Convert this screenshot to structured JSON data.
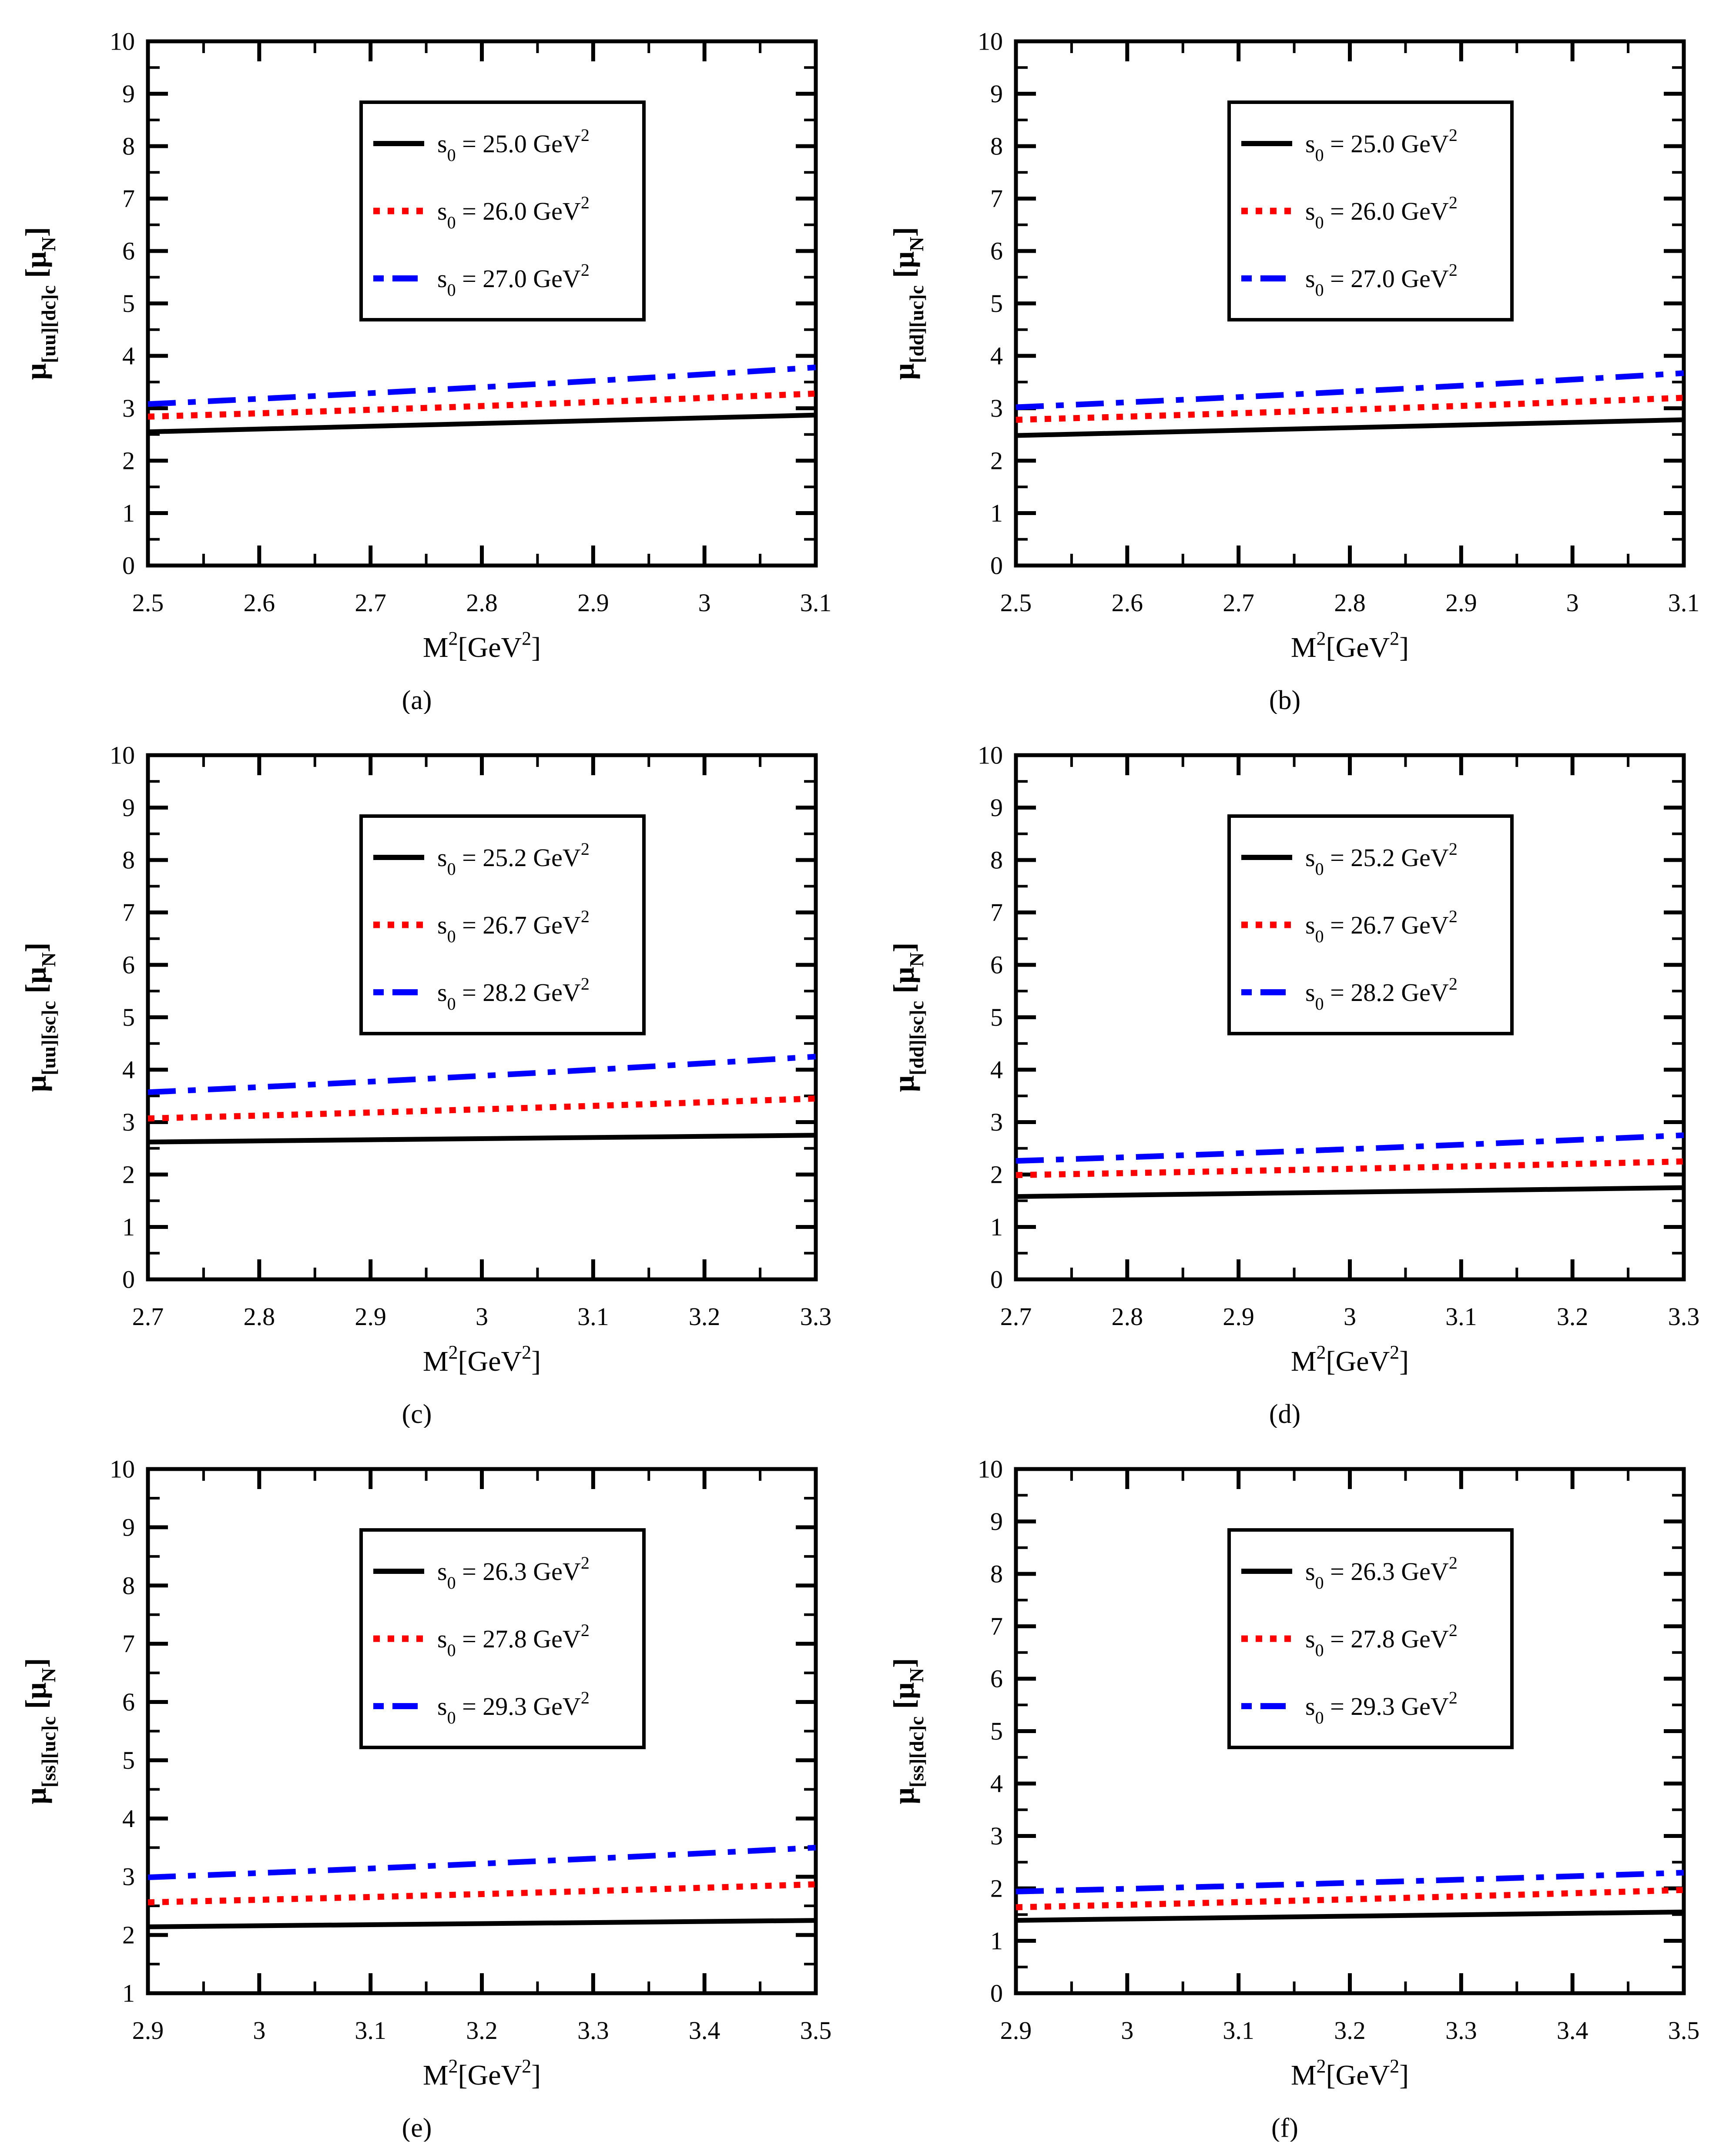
{
  "figure": {
    "background": "#ffffff",
    "xlabel": {
      "base": "M",
      "base_sup": "2",
      "unit_open": "[GeV",
      "unit_sup": "2",
      "unit_close": "]"
    },
    "ylabel_unit": {
      "open": "[",
      "symbol": "μ",
      "sub": "N",
      "close": "]"
    },
    "legend_prefix": {
      "base": "s",
      "sub": "0",
      "equals": " = ",
      "unit": " GeV",
      "unit_sup": "2"
    },
    "colors": {
      "series1": "#000000",
      "series2": "#ff0000",
      "series3": "#0000ff",
      "axis": "#000000"
    }
  },
  "chart_data": [
    {
      "type": "line",
      "caption": "(a)",
      "title": "",
      "xlabel": "M^2 [GeV^2]",
      "ylabel": "mu_[uu][dc]c [mu_N]",
      "ylabel_symbol": "μ",
      "ylabel_sub": "[uu][dc]c",
      "xlim": [
        2.5,
        3.1
      ],
      "ylim": [
        0,
        10
      ],
      "x_major": 0.1,
      "x_minor": 0.05,
      "y_major": 1,
      "y_minor": 0.5,
      "grid": false,
      "legend_position": "upper-center",
      "series": [
        {
          "name": "s0 = 25.0 GeV2",
          "s0": "25.0",
          "color": "#000000",
          "style": "solid",
          "x": [
            2.5,
            3.1
          ],
          "y": [
            2.55,
            2.87
          ]
        },
        {
          "name": "s0 = 26.0 GeV2",
          "s0": "26.0",
          "color": "#ff0000",
          "style": "dotted",
          "x": [
            2.5,
            3.1
          ],
          "y": [
            2.84,
            3.28
          ]
        },
        {
          "name": "s0 = 27.0 GeV2",
          "s0": "27.0",
          "color": "#0000ff",
          "style": "dashdot",
          "x": [
            2.5,
            3.1
          ],
          "y": [
            3.08,
            3.78
          ]
        }
      ]
    },
    {
      "type": "line",
      "caption": "(b)",
      "title": "",
      "xlabel": "M^2 [GeV^2]",
      "ylabel": "mu_[dd][uc]c [mu_N]",
      "ylabel_symbol": "μ",
      "ylabel_sub": "[dd][uc]c",
      "xlim": [
        2.5,
        3.1
      ],
      "ylim": [
        0,
        10
      ],
      "x_major": 0.1,
      "x_minor": 0.05,
      "y_major": 1,
      "y_minor": 0.5,
      "grid": false,
      "legend_position": "upper-center",
      "series": [
        {
          "name": "s0 = 25.0 GeV2",
          "s0": "25.0",
          "color": "#000000",
          "style": "solid",
          "x": [
            2.5,
            3.1
          ],
          "y": [
            2.48,
            2.78
          ]
        },
        {
          "name": "s0 = 26.0 GeV2",
          "s0": "26.0",
          "color": "#ff0000",
          "style": "dotted",
          "x": [
            2.5,
            3.1
          ],
          "y": [
            2.78,
            3.2
          ]
        },
        {
          "name": "s0 = 27.0 GeV2",
          "s0": "27.0",
          "color": "#0000ff",
          "style": "dashdot",
          "x": [
            2.5,
            3.1
          ],
          "y": [
            3.02,
            3.67
          ]
        }
      ]
    },
    {
      "type": "line",
      "caption": "(c)",
      "title": "",
      "xlabel": "M^2 [GeV^2]",
      "ylabel": "mu_[uu][sc]c [mu_N]",
      "ylabel_symbol": "μ",
      "ylabel_sub": "[uu][sc]c",
      "xlim": [
        2.7,
        3.3
      ],
      "ylim": [
        0,
        10
      ],
      "x_major": 0.1,
      "x_minor": 0.05,
      "y_major": 1,
      "y_minor": 0.5,
      "grid": false,
      "legend_position": "upper-center",
      "series": [
        {
          "name": "s0 = 25.2 GeV2",
          "s0": "25.2",
          "color": "#000000",
          "style": "solid",
          "x": [
            2.7,
            3.3
          ],
          "y": [
            2.62,
            2.75
          ]
        },
        {
          "name": "s0 = 26.7 GeV2",
          "s0": "26.7",
          "color": "#ff0000",
          "style": "dotted",
          "x": [
            2.7,
            3.3
          ],
          "y": [
            3.07,
            3.45
          ]
        },
        {
          "name": "s0 = 28.2 GeV2",
          "s0": "28.2",
          "color": "#0000ff",
          "style": "dashdot",
          "x": [
            2.7,
            3.3
          ],
          "y": [
            3.57,
            4.25
          ]
        }
      ]
    },
    {
      "type": "line",
      "caption": "(d)",
      "title": "",
      "xlabel": "M^2 [GeV^2]",
      "ylabel": "mu_[dd][sc]c [mu_N]",
      "ylabel_symbol": "μ",
      "ylabel_sub": "[dd][sc]c",
      "xlim": [
        2.7,
        3.3
      ],
      "ylim": [
        0,
        10
      ],
      "x_major": 0.1,
      "x_minor": 0.05,
      "y_major": 1,
      "y_minor": 0.5,
      "grid": false,
      "legend_position": "upper-center",
      "series": [
        {
          "name": "s0 = 25.2 GeV2",
          "s0": "25.2",
          "color": "#000000",
          "style": "solid",
          "x": [
            2.7,
            3.3
          ],
          "y": [
            1.58,
            1.75
          ]
        },
        {
          "name": "s0 = 26.7 GeV2",
          "s0": "26.7",
          "color": "#ff0000",
          "style": "dotted",
          "x": [
            2.7,
            3.3
          ],
          "y": [
            1.99,
            2.25
          ]
        },
        {
          "name": "s0 = 28.2 GeV2",
          "s0": "28.2",
          "color": "#0000ff",
          "style": "dashdot",
          "x": [
            2.7,
            3.3
          ],
          "y": [
            2.26,
            2.75
          ]
        }
      ]
    },
    {
      "type": "line",
      "caption": "(e)",
      "title": "",
      "xlabel": "M^2 [GeV^2]",
      "ylabel": "mu_[ss][uc]c [mu_N]",
      "ylabel_symbol": "μ",
      "ylabel_sub": "[ss][uc]c",
      "xlim": [
        2.9,
        3.5
      ],
      "ylim": [
        1,
        10
      ],
      "x_major": 0.1,
      "x_minor": 0.05,
      "y_major": 1,
      "y_minor": 0.5,
      "grid": false,
      "legend_position": "upper-center",
      "series": [
        {
          "name": "s0 = 26.3 GeV2",
          "s0": "26.3",
          "color": "#000000",
          "style": "solid",
          "x": [
            2.9,
            3.5
          ],
          "y": [
            2.14,
            2.25
          ]
        },
        {
          "name": "s0 = 27.8 GeV2",
          "s0": "27.8",
          "color": "#ff0000",
          "style": "dotted",
          "x": [
            2.9,
            3.5
          ],
          "y": [
            2.56,
            2.87
          ]
        },
        {
          "name": "s0 = 29.3 GeV2",
          "s0": "29.3",
          "color": "#0000ff",
          "style": "dashdot",
          "x": [
            2.9,
            3.5
          ],
          "y": [
            2.99,
            3.5
          ]
        }
      ]
    },
    {
      "type": "line",
      "caption": "(f)",
      "title": "",
      "xlabel": "M^2 [GeV^2]",
      "ylabel": "mu_[ss][dc]c [mu_N]",
      "ylabel_symbol": "μ",
      "ylabel_sub": "[ss][dc]c",
      "xlim": [
        2.9,
        3.5
      ],
      "ylim": [
        0,
        10
      ],
      "x_major": 0.1,
      "x_minor": 0.05,
      "y_major": 1,
      "y_minor": 0.5,
      "grid": false,
      "legend_position": "upper-center",
      "series": [
        {
          "name": "s0 = 26.3 GeV2",
          "s0": "26.3",
          "color": "#000000",
          "style": "solid",
          "x": [
            2.9,
            3.5
          ],
          "y": [
            1.39,
            1.55
          ]
        },
        {
          "name": "s0 = 27.8 GeV2",
          "s0": "27.8",
          "color": "#ff0000",
          "style": "dotted",
          "x": [
            2.9,
            3.5
          ],
          "y": [
            1.64,
            1.97
          ]
        },
        {
          "name": "s0 = 29.3 GeV2",
          "s0": "29.3",
          "color": "#0000ff",
          "style": "dashdot",
          "x": [
            2.9,
            3.5
          ],
          "y": [
            1.94,
            2.3
          ]
        }
      ]
    }
  ]
}
